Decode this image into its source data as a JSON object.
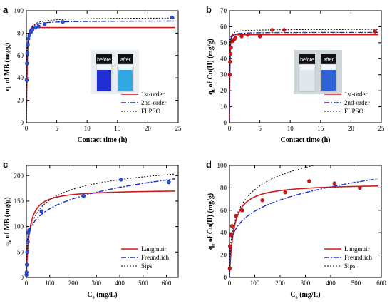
{
  "chart_data": [
    {
      "id": "a",
      "type": "scatter",
      "panel_label": "a",
      "xlabel": "Contact time (h)",
      "ylabel_main": "q",
      "ylabel_sub": "t",
      "ylabel_rest": " of MB (mg/g)",
      "xlim": [
        0,
        25
      ],
      "ylim": [
        0,
        100
      ],
      "xticks": [
        0,
        5,
        10,
        15,
        20,
        25
      ],
      "yticks": [
        0,
        20,
        40,
        60,
        80,
        100
      ],
      "points": {
        "x": [
          0.05,
          0.1,
          0.17,
          0.25,
          0.33,
          0.5,
          0.75,
          1.0,
          1.5,
          2.0,
          3.0,
          6.0,
          24.0
        ],
        "y": [
          38,
          53,
          62,
          70,
          75,
          78,
          81,
          83,
          85,
          86,
          88,
          90,
          94
        ]
      },
      "fits": {
        "first_order": {
          "qe": 85,
          "k": 6.0
        },
        "second_order": {
          "qe": 91,
          "k": 0.18
        },
        "flpso": {
          "qe": 94,
          "k": 0.12,
          "n": 0.85
        }
      },
      "legend": [
        "1st-order",
        "2nd-order",
        "FLPSO"
      ],
      "legend_position": "bottom-right",
      "inset": {
        "labels": [
          "before",
          "after"
        ],
        "liquid_colors": [
          "#1f2fd0",
          "#32a8e0"
        ]
      }
    },
    {
      "id": "b",
      "type": "scatter",
      "panel_label": "b",
      "xlabel": "Contact time (h)",
      "ylabel_main": "q",
      "ylabel_sub": "t",
      "ylabel_rest": " of Cu(II) (mg/g)",
      "xlim": [
        0,
        25
      ],
      "ylim": [
        0,
        70
      ],
      "xticks": [
        0,
        5,
        10,
        15,
        20,
        25
      ],
      "yticks": [
        0,
        10,
        20,
        30,
        40,
        50,
        60,
        70
      ],
      "points": {
        "x": [
          0.05,
          0.1,
          0.17,
          0.25,
          0.5,
          0.75,
          1.0,
          2.0,
          3.0,
          5.0,
          7.0,
          9.0,
          24.0
        ],
        "y": [
          30,
          38,
          43,
          47,
          51,
          52,
          53,
          54,
          55,
          54,
          58,
          58,
          57
        ]
      },
      "fits": {
        "first_order": {
          "qe": 55,
          "k": 12.0
        },
        "second_order": {
          "qe": 56.5,
          "k": 0.8
        },
        "flpso": {
          "qe": 58.5,
          "k": 0.55,
          "n": 0.7
        }
      },
      "legend": [
        "1st-order",
        "2nd-order",
        "FLPSO"
      ],
      "legend_position": "bottom-right",
      "inset": {
        "labels": [
          "before",
          "after"
        ],
        "liquid_colors": [
          "#dfe8ee",
          "#2f63d8"
        ]
      }
    },
    {
      "id": "c",
      "type": "scatter",
      "panel_label": "c",
      "xlabel_main": "C",
      "xlabel_sub": "e",
      "xlabel_rest": " (mg/L)",
      "ylabel_main": "q",
      "ylabel_sub": "e",
      "ylabel_rest": " of MB (mg/g)",
      "xlim": [
        0,
        650
      ],
      "ylim": [
        0,
        220
      ],
      "xticks": [
        0,
        100,
        200,
        300,
        400,
        500,
        600
      ],
      "yticks": [
        0,
        50,
        100,
        150,
        200
      ],
      "points": {
        "x": [
          0.5,
          1,
          2,
          4,
          6,
          8,
          12,
          65,
          245,
          405,
          610
        ],
        "y": [
          5,
          10,
          25,
          50,
          70,
          88,
          93,
          130,
          160,
          192,
          187
        ]
      },
      "fits": {
        "langmuir": {
          "qm": 173,
          "K": 0.08
        },
        "freundlich": {
          "K": 55,
          "n": 0.195
        },
        "sips": {
          "qm": 260,
          "K": 0.02,
          "n": 0.5
        }
      },
      "legend": [
        "Langmuir",
        "Freundlich",
        "Sips"
      ],
      "legend_position": "bottom-right"
    },
    {
      "id": "d",
      "type": "scatter",
      "panel_label": "d",
      "xlabel_main": "C",
      "xlabel_sub": "e",
      "xlabel_rest": " (mg/L)",
      "ylabel_main": "q",
      "ylabel_sub": "e",
      "ylabel_rest": " of Cu(II) (mg/g)",
      "xlim": [
        0,
        600
      ],
      "ylim": [
        0,
        100
      ],
      "xticks": [
        0,
        100,
        200,
        300,
        400,
        500,
        600
      ],
      "yticks": [
        0,
        20,
        40,
        60,
        80,
        100
      ],
      "points": {
        "x": [
          1,
          2,
          5,
          10,
          25,
          50,
          130,
          220,
          315,
          415,
          515
        ],
        "y": [
          8,
          28,
          38,
          46,
          55,
          60,
          69,
          76,
          86,
          84,
          80
        ]
      },
      "fits": {
        "langmuir": {
          "qm": 84,
          "K": 0.06
        },
        "freundlich": {
          "K": 21,
          "n": 0.225
        },
        "sips": {
          "qm": 150,
          "K": 0.012,
          "n": 0.5
        }
      },
      "legend": [
        "Langmuir",
        "Freundlich",
        "Sips"
      ],
      "legend_position": "bottom-right"
    }
  ],
  "colors": {
    "fit1": "#d01818",
    "fit2": "#1a2fc0",
    "fit3": "#000000",
    "marker": "#d01818",
    "marker_fill2": "#2855d8"
  }
}
